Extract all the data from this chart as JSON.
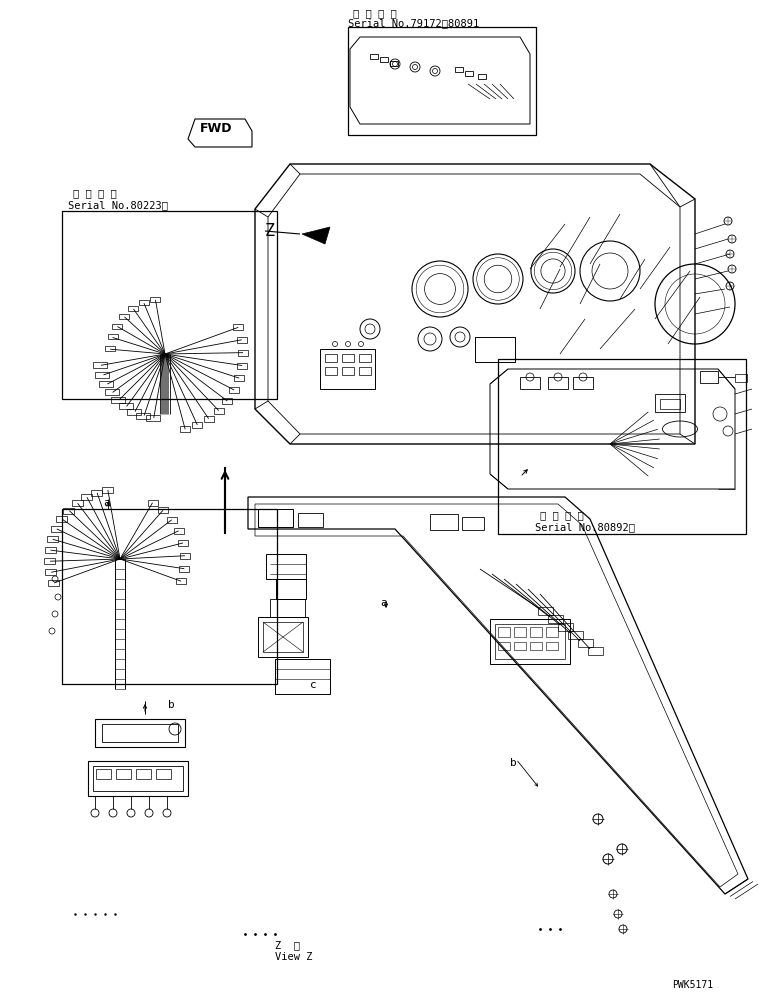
{
  "bg_color": "#ffffff",
  "line_color": "#000000",
  "figsize": [
    7.62,
    9.95
  ],
  "dpi": 100,
  "text_serial_top1": "適 用 号 機",
  "text_serial_top2": "Serial No.79172～80891",
  "text_serial_left1": "適 用 号 機",
  "text_serial_left2": "Serial No.80223～",
  "text_serial_right1": "適 用 号 機",
  "text_serial_right2": "Serial No.80892～",
  "text_view_z1": "Z  視",
  "text_view_z2": "View Z",
  "text_pwk": "PWK5171",
  "text_fwd": "FWD",
  "text_a": "a",
  "text_b": "b",
  "text_z": "Z",
  "text_c": "c"
}
